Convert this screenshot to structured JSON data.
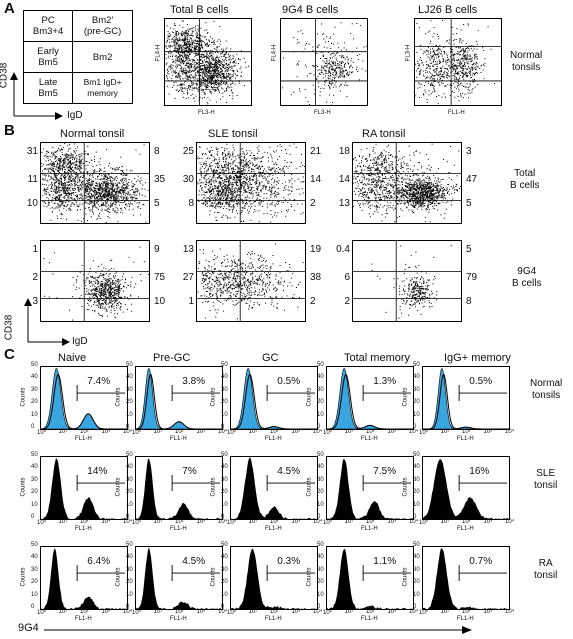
{
  "panel_a": {
    "letter": "A",
    "key": {
      "rows": [
        [
          "PC\nBm3+4",
          "Bm2′\n(pre-GC)"
        ],
        [
          "Early\nBm5",
          "Bm2"
        ],
        [
          "Late\nBm5",
          "Bm1 IgD+\nmemory"
        ]
      ],
      "y_label": "CD38",
      "x_label": "IgD"
    },
    "plots": [
      {
        "title": "Total B cells",
        "ylabel": "FL4-H",
        "xlabel": "FL3-H"
      },
      {
        "title": "9G4 B cells",
        "ylabel": "FL4-H",
        "xlabel": "FL3-H"
      },
      {
        "title": "LJ26 B cells",
        "ylabel": "FL3-H",
        "xlabel": "FL1-H"
      }
    ],
    "row_label": "Normal\ntonsils"
  },
  "panel_b": {
    "letter": "B",
    "columns": [
      "Normal tonsil",
      "SLE tonsil",
      "RA tonsil"
    ],
    "rows": [
      {
        "label": "Total\nB cells",
        "plots": [
          {
            "left": [
              "31",
              "11",
              "10"
            ],
            "right": [
              "8",
              "35",
              "5"
            ]
          },
          {
            "left": [
              "25",
              "30",
              "8"
            ],
            "right": [
              "21",
              "14",
              "2"
            ]
          },
          {
            "left": [
              "18",
              "14",
              "13"
            ],
            "right": [
              "3",
              "47",
              "5"
            ]
          }
        ]
      },
      {
        "label": "9G4\nB cells",
        "plots": [
          {
            "left": [
              "1",
              "2",
              "3"
            ],
            "right": [
              "9",
              "75",
              "10"
            ]
          },
          {
            "left": [
              "13",
              "27",
              "1"
            ],
            "right": [
              "19",
              "38",
              "2"
            ]
          },
          {
            "left": [
              "0.4",
              "6",
              "2"
            ],
            "right": [
              "5",
              "79",
              "8"
            ]
          }
        ]
      }
    ],
    "y_label": "CD38",
    "x_label": "IgD"
  },
  "panel_c": {
    "letter": "C",
    "columns": [
      "Naive",
      "Pre-GC",
      "GC",
      "Total memory",
      "IgG+ memory"
    ],
    "rows": [
      {
        "label": "Normal\ntonsils",
        "values": [
          "7.4%",
          "3.8%",
          "0.5%",
          "1.3%",
          "0.5%"
        ]
      },
      {
        "label": "SLE\ntonsil",
        "values": [
          "14%",
          "7%",
          "4.5%",
          "7.5%",
          "16%"
        ]
      },
      {
        "label": "RA\ntonsil",
        "values": [
          "6.4%",
          "4.5%",
          "0.3%",
          "1.1%",
          "0.7%"
        ]
      }
    ],
    "y_axis": "Counts",
    "y_ticks": [
      "0",
      "10",
      "20",
      "30",
      "40",
      "50"
    ],
    "x_axis": "FL1-H",
    "x_ticks": [
      "10⁰",
      "10¹",
      "10²",
      "10³",
      "10⁴"
    ],
    "marker_label": "9G4"
  },
  "colors": {
    "blue_fill": "#3aa6e0",
    "black": "#000000"
  }
}
